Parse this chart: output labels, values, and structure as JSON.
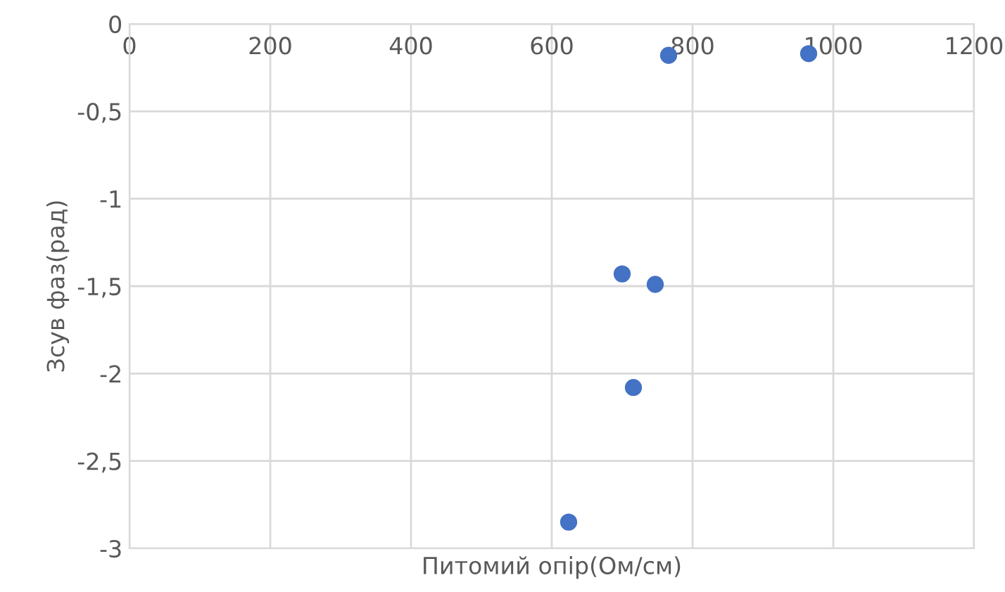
{
  "chart_data": {
    "type": "scatter",
    "xlabel": "Питомий опір(Ом/см)",
    "ylabel": "Зсув фаз(рад)",
    "x": [
      766,
      965,
      700,
      747,
      716,
      624
    ],
    "series": [
      {
        "color": "#4472c4",
        "values": [
          -0.18,
          -0.17,
          -1.43,
          -1.49,
          -2.08,
          -2.85
        ]
      }
    ],
    "xlim": [
      0,
      1200
    ],
    "xticks": [
      0,
      200,
      400,
      600,
      800,
      1000,
      1200
    ],
    "ylim": [
      -3,
      0
    ],
    "yticks": [
      {
        "value": -3,
        "label": "-3"
      },
      {
        "value": -2.5,
        "label": "-2,5"
      },
      {
        "value": -2,
        "label": "-2"
      },
      {
        "value": -1.5,
        "label": "-1,5"
      },
      {
        "value": -1,
        "label": "-1"
      },
      {
        "value": -0.5,
        "label": "-0,5"
      },
      {
        "value": 0,
        "label": "0"
      }
    ],
    "grid": true,
    "marker": "circle"
  }
}
